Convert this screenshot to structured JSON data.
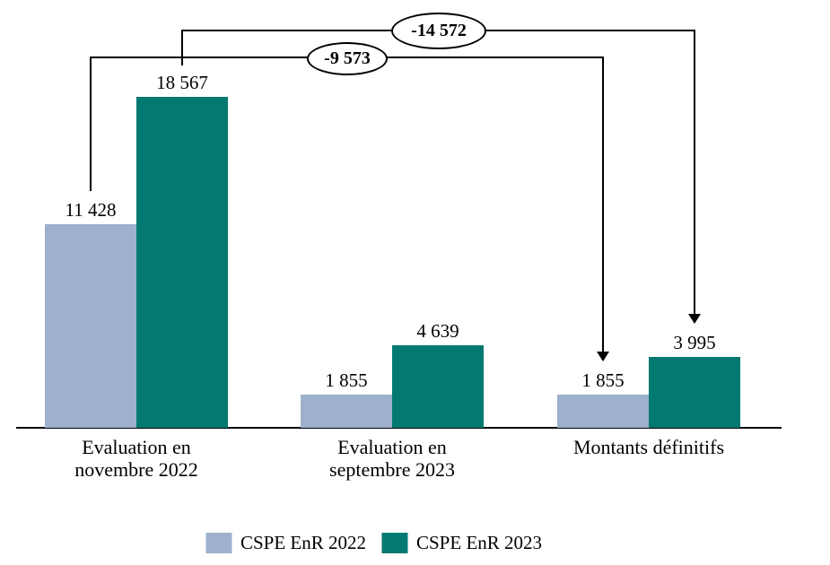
{
  "chart_data": {
    "type": "bar",
    "title": "",
    "categories": [
      "Evaluation en novembre 2022",
      "Evaluation en septembre 2023",
      "Montants définitifs"
    ],
    "series": [
      {
        "name": "CSPE EnR 2022",
        "color": "#9DB0CE",
        "values": [
          11428,
          1855,
          1855
        ],
        "value_labels": [
          "11 428",
          "1 855",
          "1 855"
        ]
      },
      {
        "name": "CSPE EnR 2023",
        "color": "#037A71",
        "values": [
          18567,
          4639,
          3995
        ],
        "value_labels": [
          "18 567",
          "4 639",
          "3 995"
        ]
      }
    ],
    "ylim": [
      0,
      18567
    ],
    "grid": false,
    "y_axis_visible": false,
    "x_axis_visible": true,
    "legend_position": "bottom",
    "colors": {
      "line": "#000000",
      "text": "#000000",
      "background": "#FFFFFF"
    },
    "annotations": [
      {
        "label": "-9 573",
        "series": "CSPE EnR 2022",
        "from_category": "Evaluation en novembre 2022",
        "to_category": "Montants définitifs"
      },
      {
        "label": "-14 572",
        "series": "CSPE EnR 2023",
        "from_category": "Evaluation en novembre 2022",
        "to_category": "Montants définitifs"
      }
    ]
  }
}
